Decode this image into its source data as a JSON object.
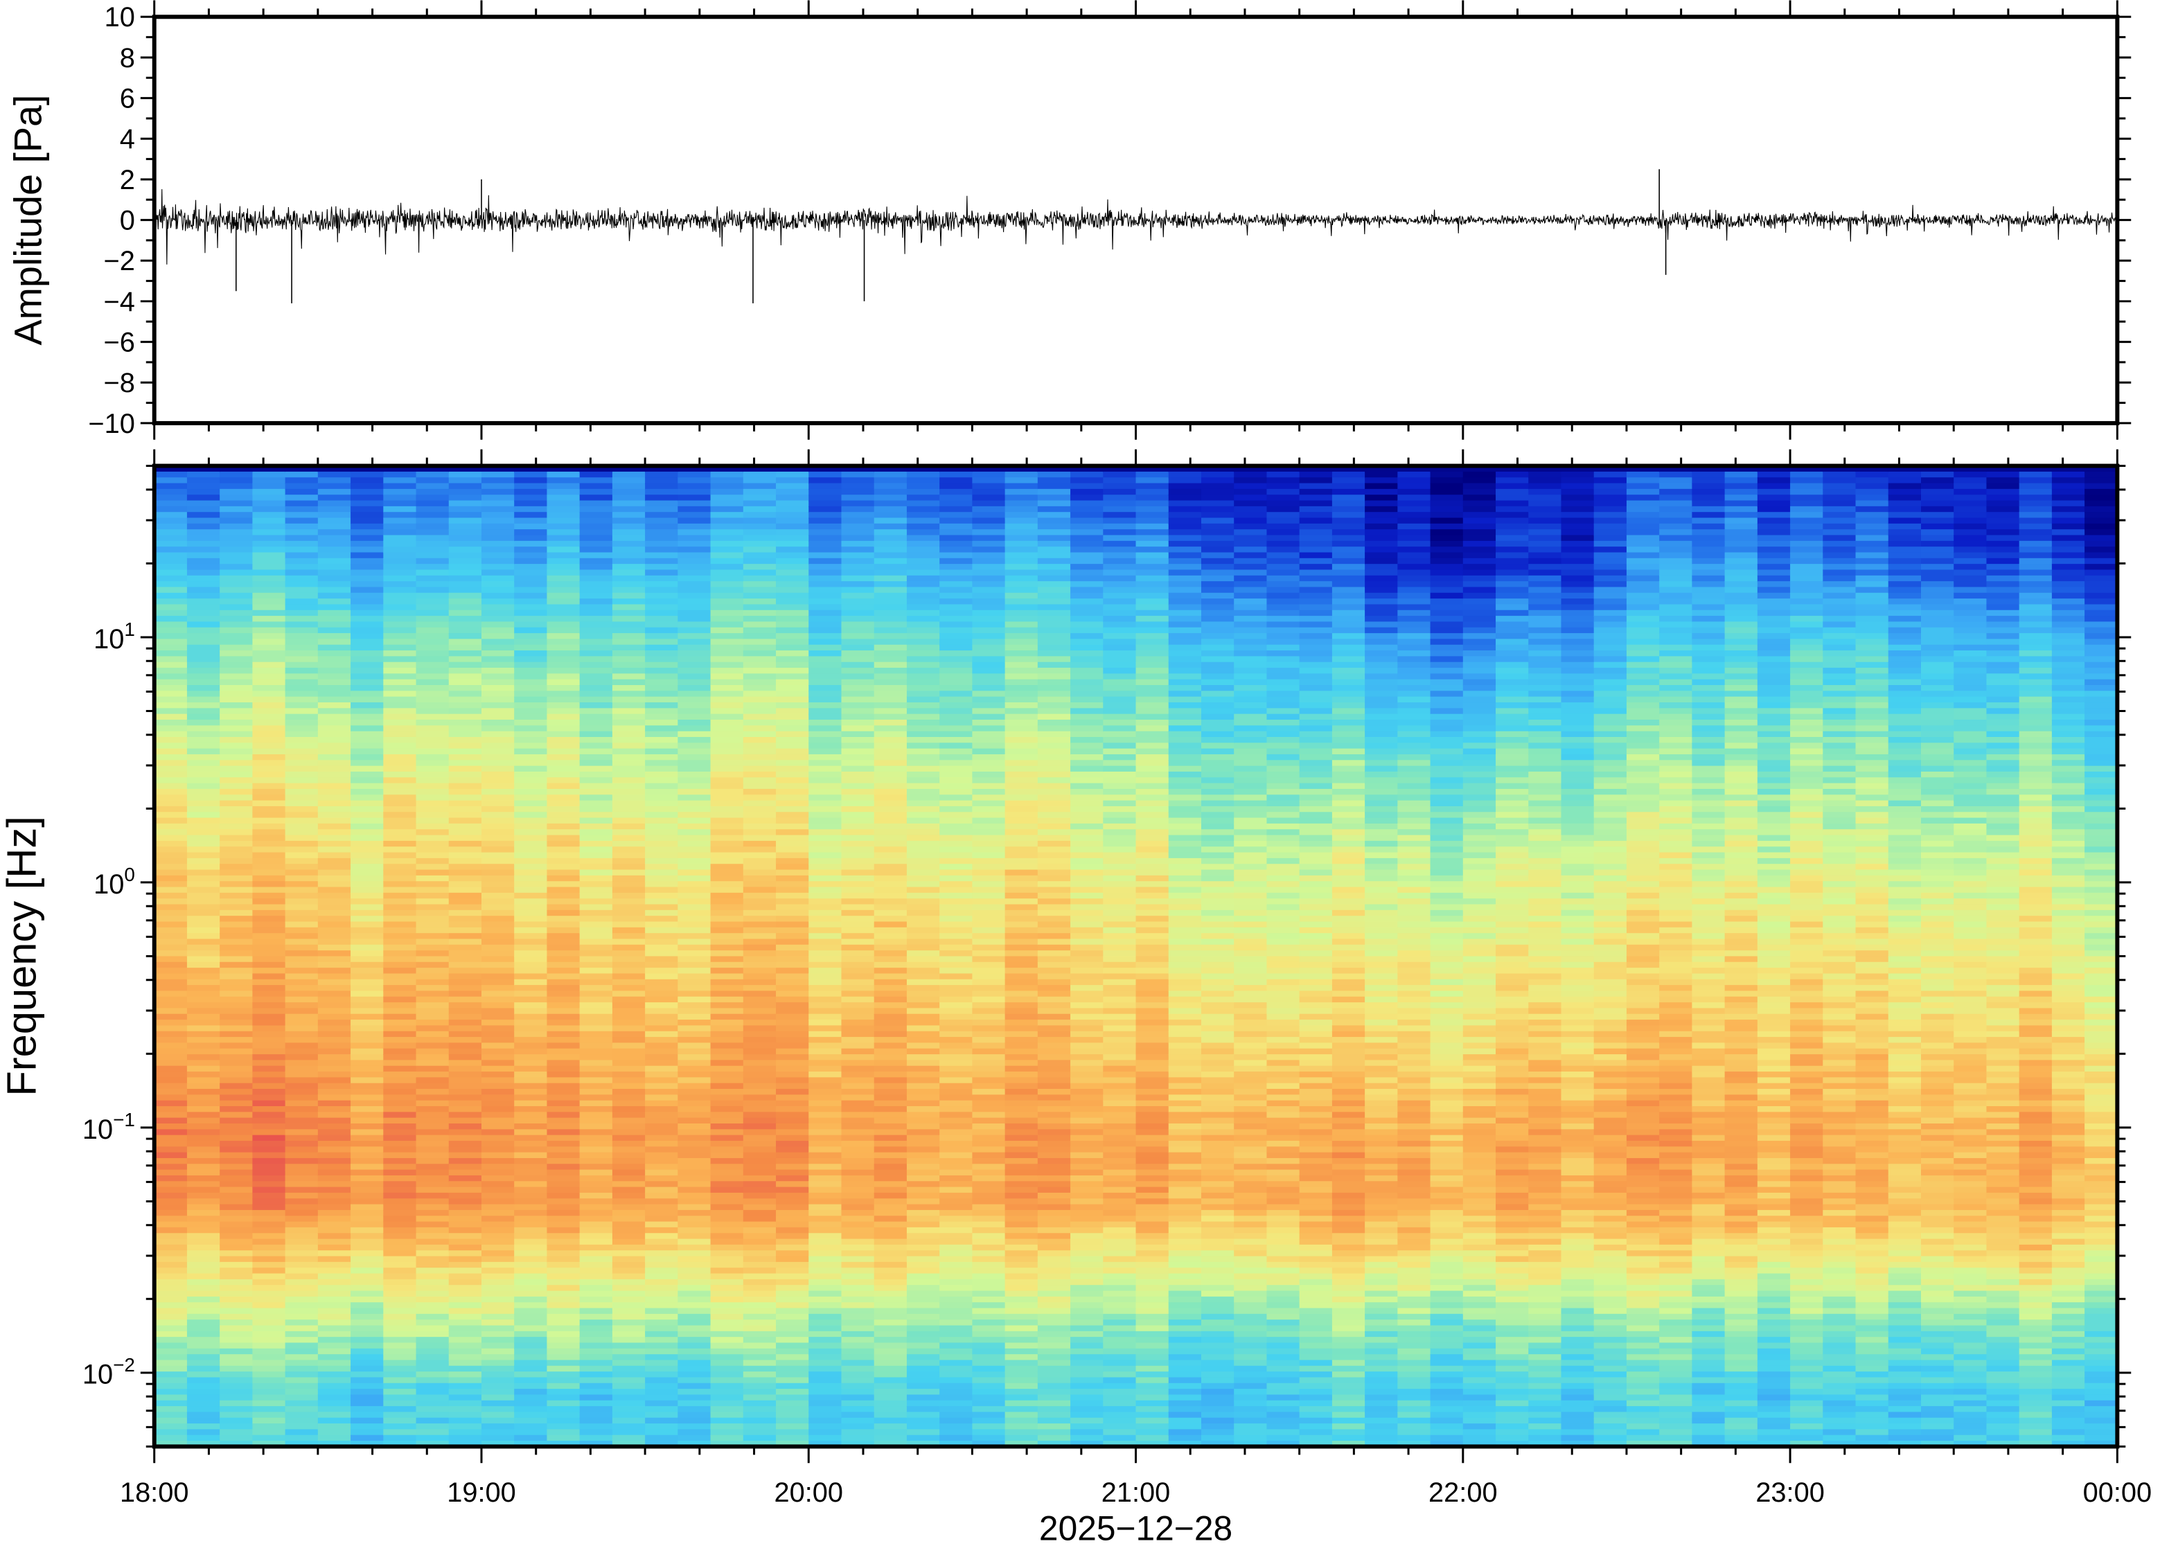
{
  "chart_data": [
    {
      "type": "line",
      "title": "",
      "ylabel": "Amplitude [Pa]",
      "xlabel": "",
      "ylim": [
        -10,
        10
      ],
      "yticks": [
        "10",
        "8",
        "6",
        "4",
        "2",
        "0",
        "−2",
        "−4",
        "−6",
        "−8",
        "−10"
      ],
      "ytick_values": [
        10,
        8,
        6,
        4,
        2,
        0,
        -2,
        -4,
        -6,
        -8,
        -10
      ],
      "xlim_hours": [
        18,
        24
      ],
      "envelope": {
        "time_hours": [
          18.25,
          18.75,
          19.25,
          19.75,
          20.25,
          20.75,
          21.25,
          21.75,
          22.25,
          22.75,
          23.25,
          23.75
        ],
        "typical_amplitude_pa": [
          0.9,
          0.85,
          0.75,
          0.7,
          0.75,
          0.65,
          0.5,
          0.35,
          0.3,
          0.6,
          0.45,
          0.4
        ]
      },
      "spikes": [
        {
          "time_hours": 18.25,
          "value": -3.5
        },
        {
          "time_hours": 18.42,
          "value": -4.1
        },
        {
          "time_hours": 19.0,
          "value": 2.0
        },
        {
          "time_hours": 19.83,
          "value": -4.1
        },
        {
          "time_hours": 20.17,
          "value": -4.0
        },
        {
          "time_hours": 22.6,
          "value": 2.5
        },
        {
          "time_hours": 22.62,
          "value": -2.7
        }
      ]
    },
    {
      "type": "heatmap",
      "title": "",
      "ylabel": "Frequency [Hz]",
      "xlabel": "2025−12−28",
      "yscale": "log",
      "ylim": [
        0.005,
        50
      ],
      "yticks": [
        {
          "base": "10",
          "exp": "1"
        },
        {
          "base": "10",
          "exp": "0"
        },
        {
          "base": "10",
          "exp": "−1"
        },
        {
          "base": "10",
          "exp": "−2"
        }
      ],
      "ytick_values": [
        10,
        1,
        0.1,
        0.01
      ],
      "xticks": [
        "18:00",
        "19:00",
        "20:00",
        "21:00",
        "22:00",
        "23:00",
        "00:00"
      ],
      "colormap": [
        "#000080",
        "#0a1ec8",
        "#1e64e6",
        "#3caaf5",
        "#46d2f0",
        "#82e6be",
        "#d2f896",
        "#f5e67a",
        "#fbb455",
        "#f58c46",
        "#e8504e"
      ],
      "time_hours": [
        18.25,
        18.75,
        19.25,
        19.75,
        20.25,
        20.75,
        21.25,
        21.75,
        22.25,
        22.75,
        23.25,
        23.75
      ],
      "log10_freq": [
        1.6,
        1.3,
        1.0,
        0.5,
        0.0,
        -0.5,
        -1.0,
        -1.3,
        -1.5,
        -1.8,
        -2.1
      ],
      "relative_power": [
        [
          0.22,
          0.2,
          0.22,
          0.24,
          0.22,
          0.18,
          0.15,
          0.05,
          0.06,
          0.2,
          0.14,
          0.08
        ],
        [
          0.35,
          0.3,
          0.35,
          0.36,
          0.34,
          0.3,
          0.25,
          0.1,
          0.1,
          0.3,
          0.22,
          0.15
        ],
        [
          0.48,
          0.45,
          0.47,
          0.48,
          0.46,
          0.42,
          0.38,
          0.25,
          0.25,
          0.42,
          0.38,
          0.32
        ],
        [
          0.62,
          0.6,
          0.6,
          0.62,
          0.6,
          0.56,
          0.52,
          0.45,
          0.45,
          0.55,
          0.52,
          0.48
        ],
        [
          0.74,
          0.72,
          0.72,
          0.72,
          0.7,
          0.68,
          0.64,
          0.6,
          0.6,
          0.68,
          0.64,
          0.62
        ],
        [
          0.8,
          0.78,
          0.78,
          0.78,
          0.77,
          0.75,
          0.72,
          0.68,
          0.68,
          0.76,
          0.72,
          0.7
        ],
        [
          0.9,
          0.86,
          0.85,
          0.86,
          0.84,
          0.82,
          0.82,
          0.8,
          0.8,
          0.85,
          0.8,
          0.8
        ],
        [
          0.88,
          0.86,
          0.84,
          0.85,
          0.83,
          0.82,
          0.82,
          0.82,
          0.8,
          0.84,
          0.8,
          0.8
        ],
        [
          0.75,
          0.74,
          0.74,
          0.74,
          0.72,
          0.7,
          0.72,
          0.72,
          0.7,
          0.72,
          0.7,
          0.72
        ],
        [
          0.58,
          0.55,
          0.56,
          0.56,
          0.55,
          0.52,
          0.5,
          0.5,
          0.5,
          0.52,
          0.5,
          0.52
        ],
        [
          0.42,
          0.38,
          0.4,
          0.4,
          0.4,
          0.42,
          0.38,
          0.4,
          0.38,
          0.42,
          0.38,
          0.4
        ]
      ]
    }
  ]
}
